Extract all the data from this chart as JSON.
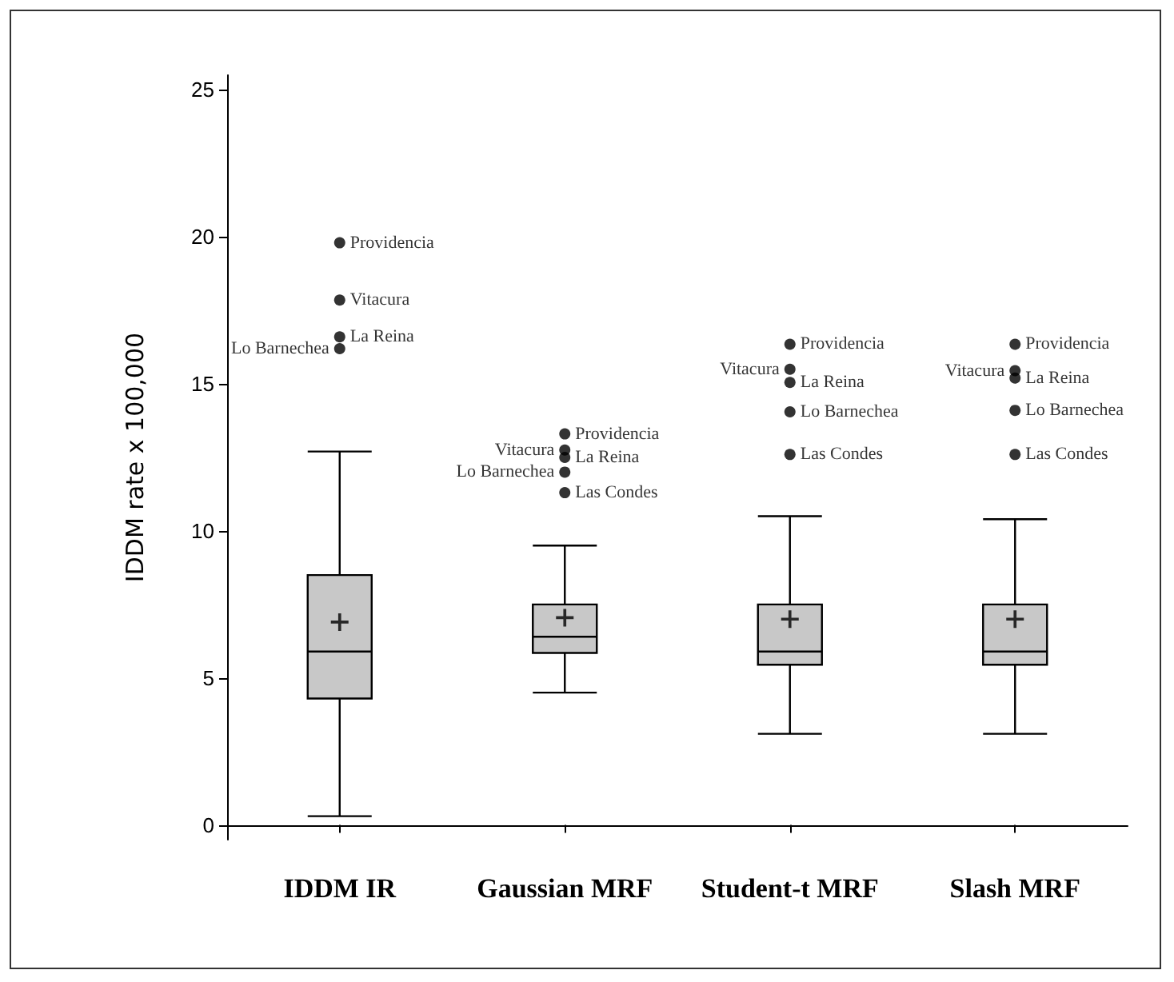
{
  "chart_data": {
    "type": "box",
    "ylabel": "IDDM rate x 100,000",
    "categories": [
      "IDDM IR",
      "Gaussian MRF",
      "Student-t MRF",
      "Slash MRF"
    ],
    "color": "#c8c8c8",
    "ylim": [
      -0.5,
      25.5
    ],
    "yticks": [
      0,
      5,
      10,
      15,
      20,
      25
    ],
    "grid": false,
    "boxes": [
      {
        "low": 0.3,
        "q1": 4.3,
        "median": 5.9,
        "q3": 8.5,
        "high": 12.7,
        "mean": 6.9,
        "outliers": [
          19.8,
          17.85,
          16.6,
          16.2
        ]
      },
      {
        "low": 4.5,
        "q1": 5.85,
        "median": 6.4,
        "q3": 7.5,
        "high": 9.5,
        "mean": 7.05,
        "outliers": [
          13.3,
          12.75,
          12.5,
          12.0,
          11.3
        ]
      },
      {
        "low": 3.1,
        "q1": 5.45,
        "median": 5.9,
        "q3": 7.5,
        "high": 10.5,
        "mean": 7.0,
        "outliers": [
          16.35,
          15.5,
          15.05,
          14.05,
          12.6
        ]
      },
      {
        "low": 3.1,
        "q1": 5.45,
        "median": 5.9,
        "q3": 7.5,
        "high": 10.4,
        "mean": 7.0,
        "outliers": [
          16.35,
          15.45,
          15.2,
          14.1,
          12.6
        ]
      }
    ],
    "annotations": [
      "Providencia",
      "Vitacura",
      "La Reina",
      "Lo Barnechea",
      "Providencia",
      "Vitacura",
      "La Reina",
      "Lo Barnechea",
      "Las Condes",
      "Providencia",
      "Vitacura",
      "La Reina",
      "Lo Barnechea",
      "Las Condes",
      "Providencia",
      "Vitacura",
      "La Reina",
      "Lo Barnechea",
      "Las Condes"
    ]
  }
}
